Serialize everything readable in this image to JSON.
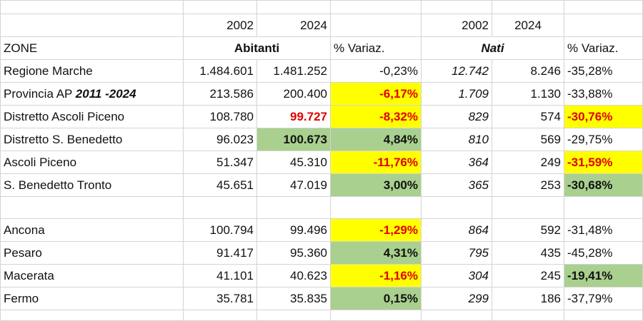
{
  "header": {
    "year_a": "2002",
    "year_b": "2024",
    "zone_label": "ZONE",
    "abitanti_label": "Abitanti",
    "nati_label": "Nati",
    "variation_label": "% Variaz."
  },
  "rows": [
    {
      "zone": "Regione Marche",
      "zone_suffix": "",
      "ab2002": "1.484.601",
      "ab2024": "1.481.252",
      "var_ab": "-0,23%",
      "nati2002": "12.742",
      "nati2024": "8.246",
      "var_nati": "-35,28%"
    },
    {
      "zone": "Provincia AP ",
      "zone_suffix": "2011 -2024",
      "ab2002": "213.586",
      "ab2024": "200.400",
      "var_ab": "-6,17%",
      "nati2002": "1.709",
      "nati2024": "1.130",
      "var_nati": "-33,88%"
    },
    {
      "zone": "Distretto Ascoli Piceno",
      "zone_suffix": "",
      "ab2002": "108.780",
      "ab2024": "99.727",
      "var_ab": "-8,32%",
      "nati2002": "829",
      "nati2024": "574",
      "var_nati": "-30,76%"
    },
    {
      "zone": "Distretto S. Benedetto",
      "zone_suffix": "",
      "ab2002": "96.023",
      "ab2024": "100.673",
      "var_ab": "4,84%",
      "nati2002": "810",
      "nati2024": "569",
      "var_nati": "-29,75%"
    },
    {
      "zone": "Ascoli Piceno",
      "zone_suffix": "",
      "ab2002": "51.347",
      "ab2024": "45.310",
      "var_ab": "-11,76%",
      "nati2002": "364",
      "nati2024": "249",
      "var_nati": "-31,59%"
    },
    {
      "zone": "S. Benedetto Tronto",
      "zone_suffix": "",
      "ab2002": "45.651",
      "ab2024": "47.019",
      "var_ab": "3,00%",
      "nati2002": "365",
      "nati2024": "253",
      "var_nati": "-30,68%"
    },
    {
      "zone": "Ancona",
      "zone_suffix": "",
      "ab2002": "100.794",
      "ab2024": "99.496",
      "var_ab": "-1,29%",
      "nati2002": "864",
      "nati2024": "592",
      "var_nati": "-31,48%"
    },
    {
      "zone": "Pesaro",
      "zone_suffix": "",
      "ab2002": "91.417",
      "ab2024": "95.360",
      "var_ab": "4,31%",
      "nati2002": "795",
      "nati2024": "435",
      "var_nati": "-45,28%"
    },
    {
      "zone": "Macerata",
      "zone_suffix": "",
      "ab2002": "41.101",
      "ab2024": "40.623",
      "var_ab": "-1,16%",
      "nati2002": "304",
      "nati2024": "245",
      "var_nati": "-19,41%"
    },
    {
      "zone": "Fermo",
      "zone_suffix": "",
      "ab2002": "35.781",
      "ab2024": "35.835",
      "var_ab": "0,15%",
      "nati2002": "299",
      "nati2024": "186",
      "var_nati": "-37,79%"
    }
  ],
  "colors": {
    "highlight_yellow": "#ffff00",
    "highlight_green": "#a9d08e",
    "negative_red": "#e00000",
    "gridline": "#d4d4d4"
  }
}
